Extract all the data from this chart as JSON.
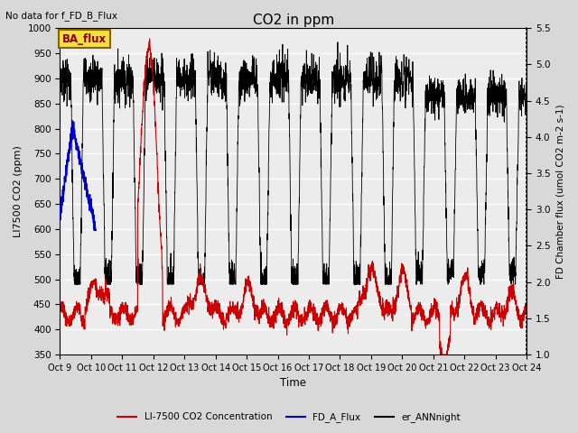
{
  "title": "CO2 in ppm",
  "top_left_text": "No data for f_FD_B_Flux",
  "legend_box_text": "BA_flux",
  "xlabel": "Time",
  "ylabel_left": "LI7500 CO2 (ppm)",
  "ylabel_right": "FD Chamber flux (umol CO2 m-2 s-1)",
  "ylim_left": [
    350,
    1000
  ],
  "ylim_right": [
    1.0,
    5.5
  ],
  "yticks_left": [
    350,
    400,
    450,
    500,
    550,
    600,
    650,
    700,
    750,
    800,
    850,
    900,
    950,
    1000
  ],
  "yticks_right": [
    1.0,
    1.5,
    2.0,
    2.5,
    3.0,
    3.5,
    4.0,
    4.5,
    5.0,
    5.5
  ],
  "xtick_labels": [
    "Oct 9",
    "Oct 10",
    "Oct 11",
    "Oct 12",
    "Oct 13",
    "Oct 14",
    "Oct 15",
    "Oct 16",
    "Oct 17",
    "Oct 18",
    "Oct 19",
    "Oct 20",
    "Oct 21",
    "Oct 22",
    "Oct 23",
    "Oct 24"
  ],
  "background_color": "#d8d8d8",
  "plot_bg_color": "#ececec",
  "red_color": "#cc0000",
  "blue_color": "#0000cc",
  "black_color": "#000000",
  "legend_entries": [
    "LI-7500 CO2 Concentration",
    "FD_A_Flux",
    "er_ANNnight"
  ],
  "legend_colors": [
    "#cc0000",
    "#0000cc",
    "#000000"
  ],
  "n_days": 15,
  "samples_per_day": 200
}
